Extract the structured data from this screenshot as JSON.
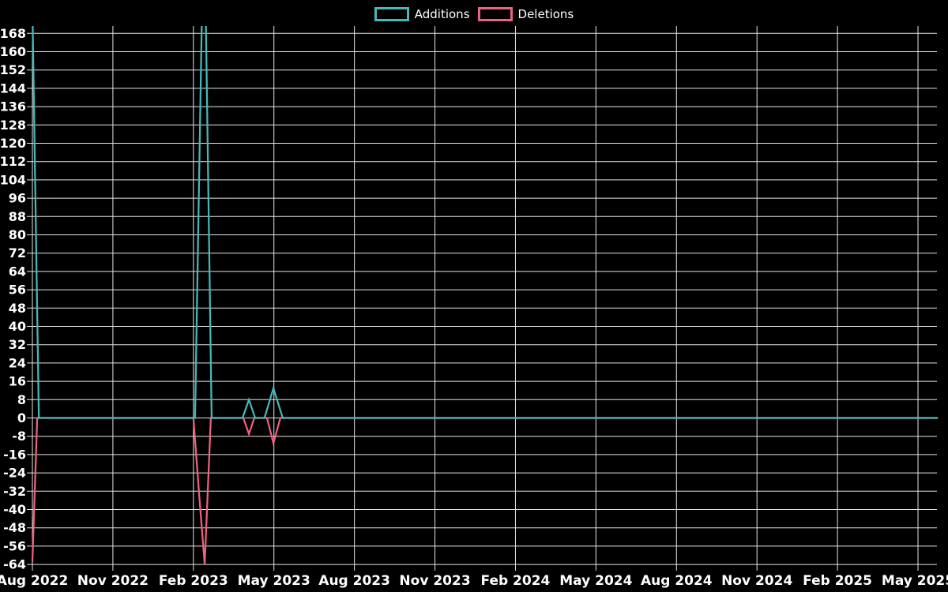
{
  "legend": {
    "additions": "Additions",
    "deletions": "Deletions"
  },
  "colors": {
    "additions": "#45b8b8",
    "deletions": "#f0607f",
    "grid": "#e6e6e6",
    "background": "#000000",
    "text": "#ffffff"
  },
  "chart_data": {
    "type": "line",
    "title": "",
    "xlabel": "",
    "ylabel": "",
    "legend_position": "top-center",
    "grid": true,
    "ylim": [
      -64,
      168
    ],
    "y_ticks": [
      168,
      160,
      152,
      144,
      136,
      128,
      120,
      112,
      104,
      96,
      88,
      80,
      72,
      64,
      56,
      48,
      40,
      32,
      24,
      16,
      8,
      0,
      -8,
      -16,
      -24,
      -32,
      -40,
      -48,
      -56,
      -64
    ],
    "x_tick_labels": [
      "Aug 2022",
      "Nov 2022",
      "Feb 2023",
      "May 2023",
      "Aug 2023",
      "Nov 2023",
      "Feb 2024",
      "May 2024",
      "Aug 2024",
      "Nov 2024",
      "Feb 2025",
      "May 2025"
    ],
    "x_offset_unit": "months since Aug 2022",
    "x_range_months": [
      0,
      33.74
    ],
    "clip_note": "spike peaks in Aug 2022 and Feb 2023 exceed the y-axis top (168) and are clipped at the plot edge",
    "series": [
      {
        "name": "Additions",
        "color": "#45b8b8",
        "points": [
          [
            0,
            180
          ],
          [
            0.24,
            0
          ],
          [
            6.06,
            0
          ],
          [
            6.33,
            185
          ],
          [
            6.45,
            185
          ],
          [
            6.68,
            0
          ],
          [
            7.83,
            0
          ],
          [
            8.07,
            8
          ],
          [
            8.3,
            0
          ],
          [
            8.65,
            0
          ],
          [
            8.98,
            13
          ],
          [
            9.33,
            0
          ],
          [
            33.74,
            0
          ]
        ]
      },
      {
        "name": "Deletions",
        "color": "#f0607f",
        "points": [
          [
            0,
            -63
          ],
          [
            0.18,
            0
          ],
          [
            6.0,
            0
          ],
          [
            6.21,
            -33
          ],
          [
            6.42,
            -64
          ],
          [
            6.65,
            0
          ],
          [
            7.86,
            0
          ],
          [
            8.07,
            -7
          ],
          [
            8.27,
            0
          ],
          [
            8.74,
            0
          ],
          [
            8.98,
            -11
          ],
          [
            9.24,
            0
          ],
          [
            33.74,
            0
          ]
        ]
      }
    ]
  }
}
